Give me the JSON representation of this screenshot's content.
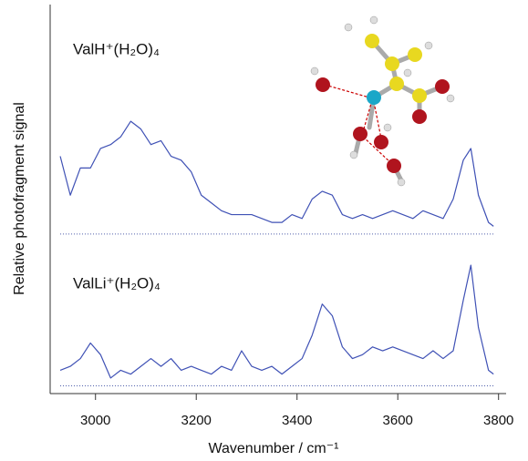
{
  "chart_data": {
    "type": "line",
    "xlabel": "Wavenumber / cm⁻¹",
    "ylabel": "Relative photofragment signal",
    "xlim": [
      2910,
      3815
    ],
    "xticks": [
      3000,
      3200,
      3400,
      3600,
      3800
    ],
    "ylim": [
      0,
      10
    ],
    "baselines": [
      4.1,
      0.2
    ],
    "baseline_color": "#4a5aa8",
    "x": [
      2930,
      2950,
      2970,
      2990,
      3010,
      3030,
      3050,
      3070,
      3090,
      3110,
      3130,
      3150,
      3170,
      3190,
      3210,
      3230,
      3250,
      3270,
      3290,
      3310,
      3330,
      3350,
      3370,
      3390,
      3410,
      3430,
      3450,
      3470,
      3490,
      3510,
      3530,
      3550,
      3570,
      3590,
      3610,
      3630,
      3650,
      3670,
      3690,
      3710,
      3730,
      3745,
      3760,
      3780,
      3790
    ],
    "series": [
      {
        "name": "ValH⁺(H₂O)₄",
        "color": "#3f51b5",
        "values": [
          6.1,
          5.1,
          5.8,
          5.8,
          6.3,
          6.4,
          6.6,
          7.0,
          6.8,
          6.4,
          6.5,
          6.1,
          6.0,
          5.7,
          5.1,
          4.9,
          4.7,
          4.6,
          4.6,
          4.6,
          4.5,
          4.4,
          4.4,
          4.6,
          4.5,
          5.0,
          5.2,
          5.1,
          4.6,
          4.5,
          4.6,
          4.5,
          4.6,
          4.7,
          4.6,
          4.5,
          4.7,
          4.6,
          4.5,
          5.0,
          6.0,
          6.3,
          5.1,
          4.4,
          4.3
        ]
      },
      {
        "name": "ValLi⁺(H₂O)₄",
        "color": "#3f51b5",
        "values": [
          0.6,
          0.7,
          0.9,
          1.3,
          1.0,
          0.4,
          0.6,
          0.5,
          0.7,
          0.9,
          0.7,
          0.9,
          0.6,
          0.7,
          0.6,
          0.5,
          0.7,
          0.6,
          1.1,
          0.7,
          0.6,
          0.7,
          0.5,
          0.7,
          0.9,
          1.5,
          2.3,
          2.0,
          1.2,
          0.9,
          1.0,
          1.2,
          1.1,
          1.2,
          1.1,
          1.0,
          0.9,
          1.1,
          0.9,
          1.1,
          2.4,
          3.3,
          1.7,
          0.6,
          0.5
        ]
      }
    ]
  }
}
